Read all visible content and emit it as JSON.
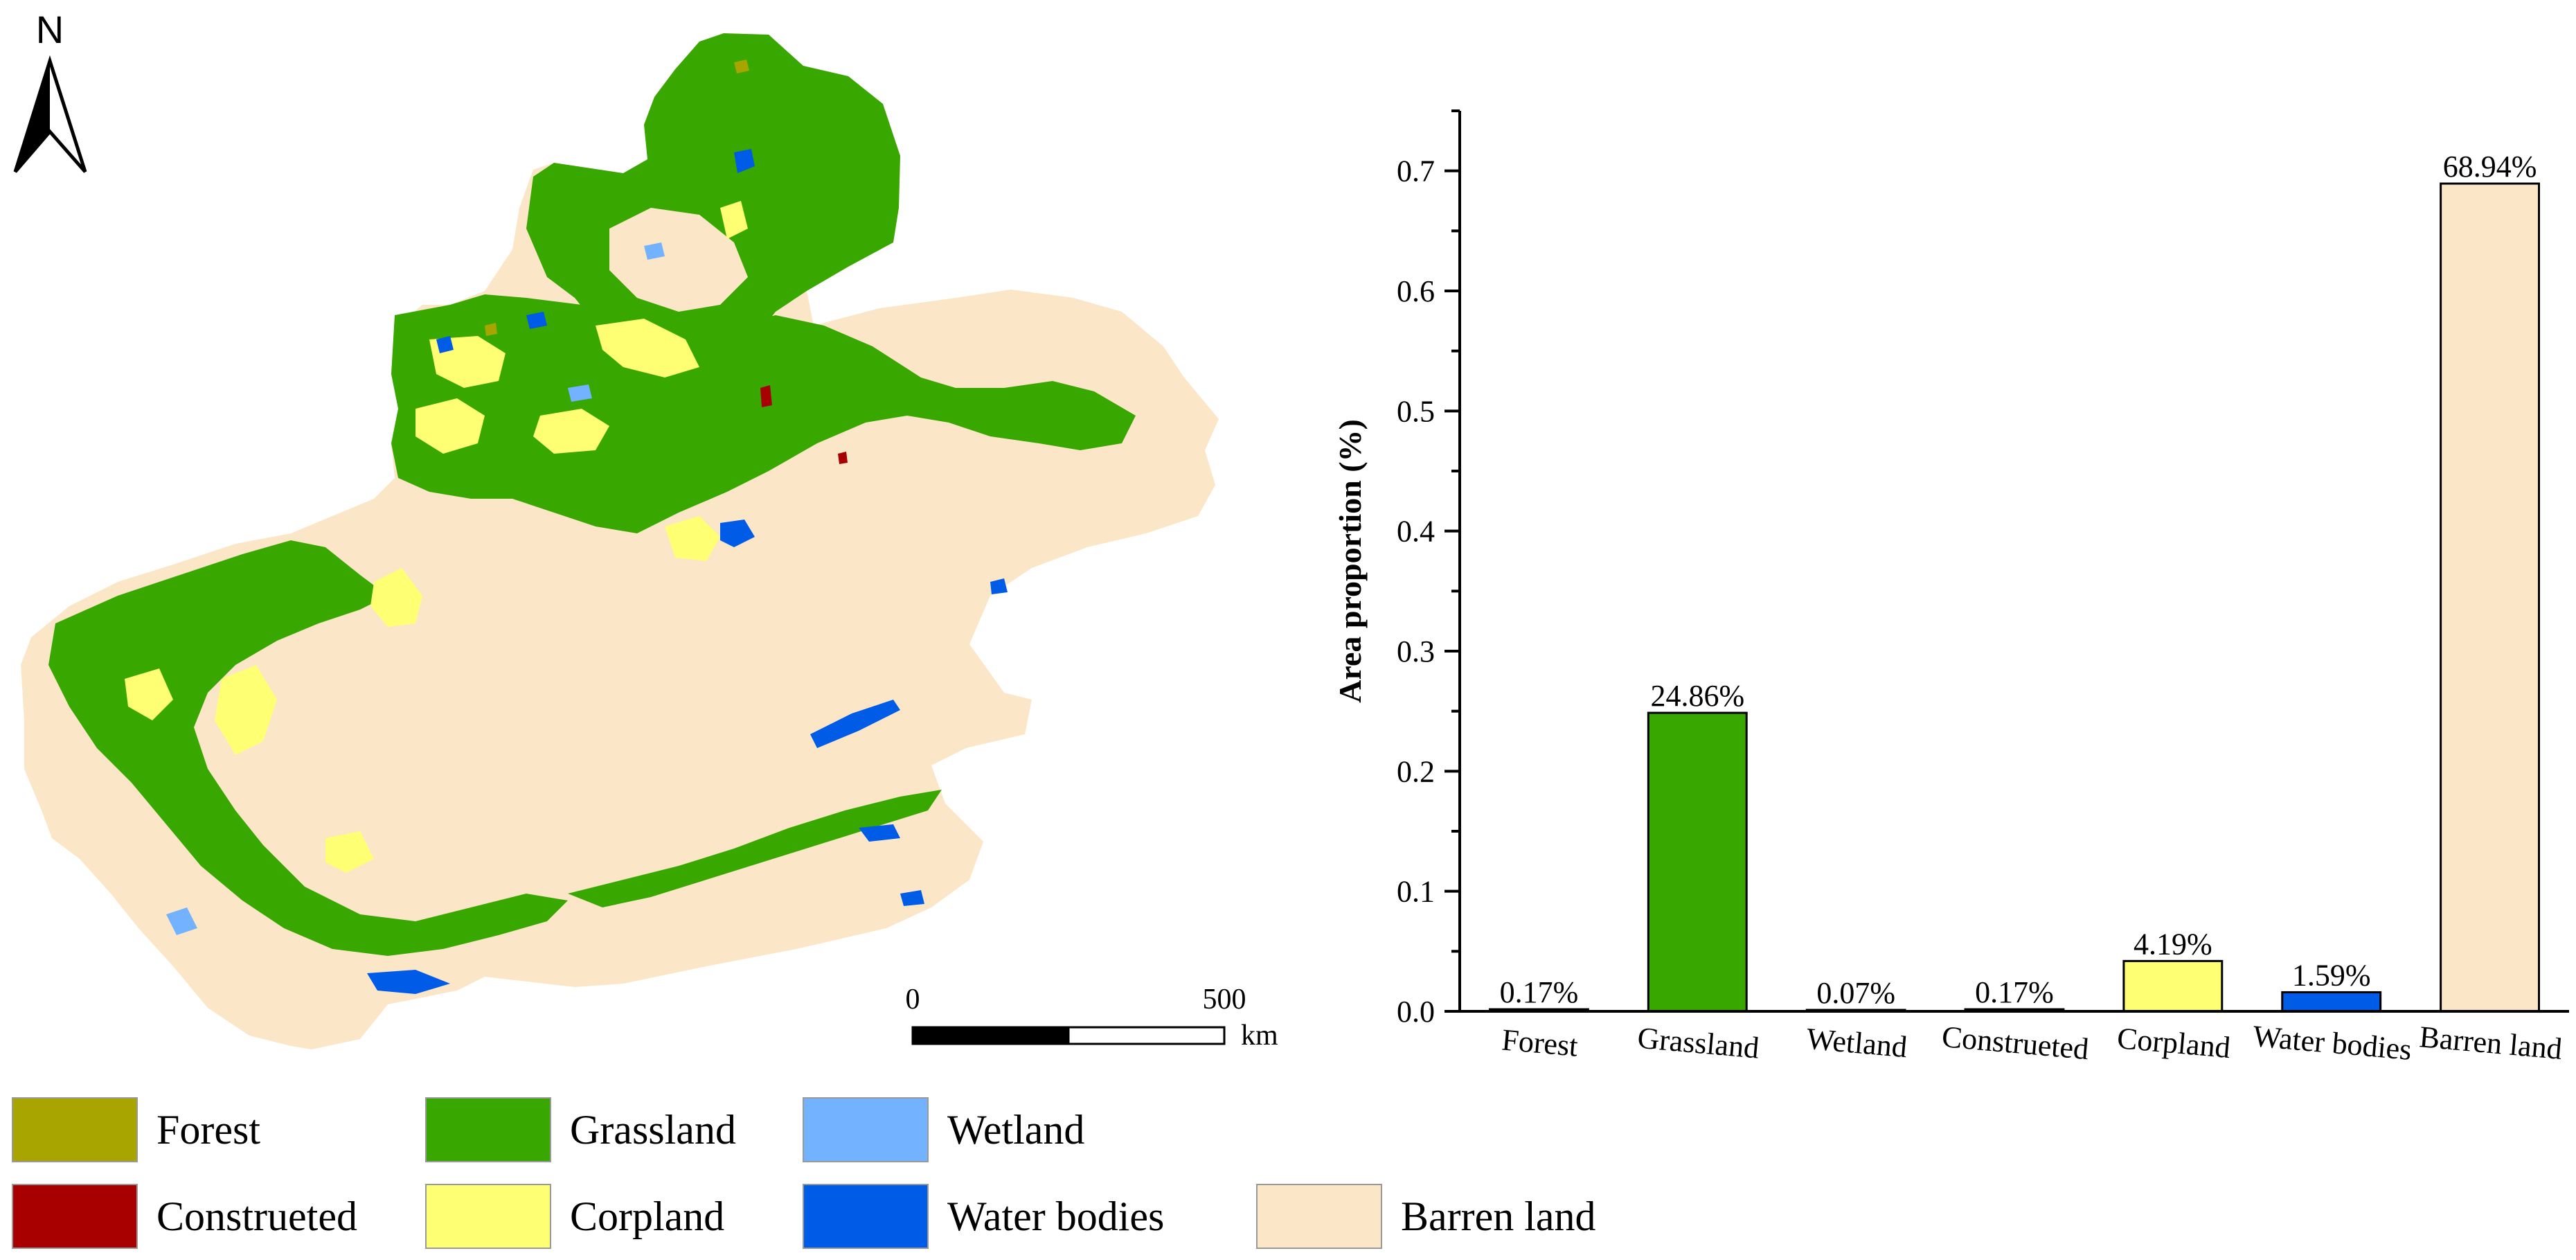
{
  "map": {
    "north_label": "N",
    "scale_start": "0",
    "scale_end": "500",
    "scale_unit": "km"
  },
  "legend": {
    "items": [
      {
        "label": "Forest",
        "color": "#a8a400"
      },
      {
        "label": "Grassland",
        "color": "#38a700"
      },
      {
        "label": "Wetland",
        "color": "#73b2ff"
      },
      {
        "label": "Construeted",
        "color": "#a80000"
      },
      {
        "label": "Corpland",
        "color": "#ffff73"
      },
      {
        "label": "Water bodies",
        "color": "#005ce6"
      },
      {
        "label": "Barren land",
        "color": "#fce6c8"
      }
    ]
  },
  "colors": {
    "barren": "#fce6c8",
    "grassland": "#38a700",
    "cropland": "#ffff73",
    "water": "#005ce6",
    "wetland": "#73b2ff",
    "constructed": "#a80000",
    "forest": "#a8a400",
    "axis": "#000000"
  },
  "chart_data": {
    "type": "bar",
    "categories": [
      "Forest",
      "Grassland",
      "Wetland",
      "Construeted",
      "Corpland",
      "Water bodies",
      "Barren land"
    ],
    "values": [
      0.0017,
      0.2486,
      0.0007,
      0.0017,
      0.0419,
      0.0159,
      0.6894
    ],
    "data_labels": [
      "0.17%",
      "24.86%",
      "0.07%",
      "0.17%",
      "4.19%",
      "1.59%",
      "68.94%"
    ],
    "colors": [
      "#a8a400",
      "#38a700",
      "#73b2ff",
      "#a80000",
      "#ffff73",
      "#005ce6",
      "#fce6c8"
    ],
    "ylabel": "Area proportion (%)",
    "xlabel": "",
    "ylim": [
      0,
      0.75
    ],
    "yticks": [
      0.0,
      0.1,
      0.2,
      0.3,
      0.4,
      0.5,
      0.6,
      0.7
    ],
    "ytick_labels": [
      "0.0",
      "0.1",
      "0.2",
      "0.3",
      "0.4",
      "0.5",
      "0.6",
      "0.7"
    ],
    "grid": false
  }
}
